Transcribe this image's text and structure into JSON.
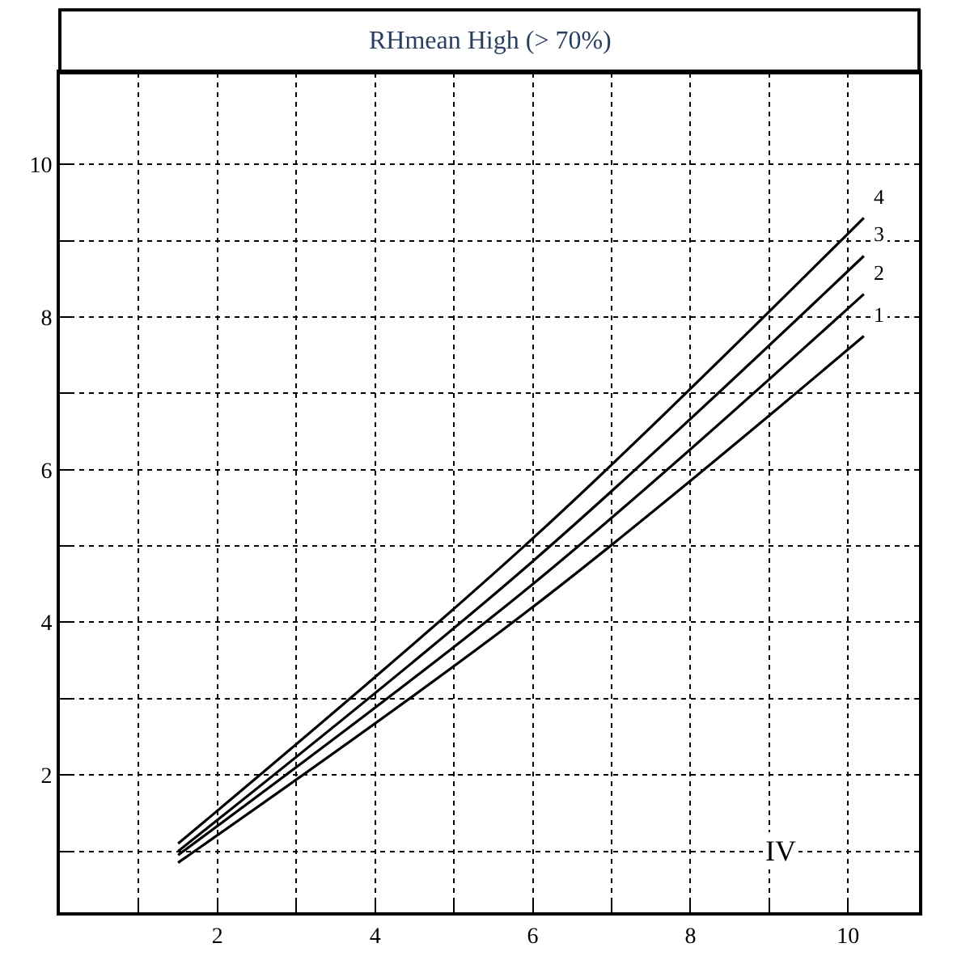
{
  "chart_data": {
    "type": "line",
    "title": "RHmean High (> 70%)",
    "annotations": [
      "IV"
    ],
    "series": [
      {
        "name": "1",
        "color": "#000000",
        "x": [
          1.5,
          6,
          10.2
        ],
        "values": [
          0.85,
          4.2,
          7.75
        ]
      },
      {
        "name": "2",
        "color": "#000000",
        "x": [
          1.5,
          6,
          10.2
        ],
        "values": [
          0.95,
          4.5,
          8.3
        ]
      },
      {
        "name": "3",
        "color": "#000000",
        "x": [
          1.5,
          6,
          10.2
        ],
        "values": [
          1.0,
          4.8,
          8.8
        ]
      },
      {
        "name": "4",
        "color": "#000000",
        "x": [
          1.5,
          6,
          10.2
        ],
        "values": [
          1.1,
          5.1,
          9.3
        ]
      }
    ],
    "xlim": [
      0,
      10.9
    ],
    "ylim": [
      0.2,
      11.2
    ],
    "xticks": [
      {
        "value": 1,
        "label": null
      },
      2,
      {
        "value": 3,
        "label": null
      },
      4,
      {
        "value": 5,
        "label": null
      },
      6,
      {
        "value": 7,
        "label": null
      },
      8,
      {
        "value": 9,
        "label": null
      },
      10
    ],
    "yticks": [
      {
        "value": 1,
        "label": null
      },
      2,
      {
        "value": 3,
        "label": null
      },
      4,
      {
        "value": 5,
        "label": null
      },
      6,
      {
        "value": 7,
        "label": null
      },
      8,
      {
        "value": 9,
        "label": null
      },
      10
    ],
    "grid": true,
    "legend": false,
    "marker": "none",
    "line_style": "solid"
  }
}
